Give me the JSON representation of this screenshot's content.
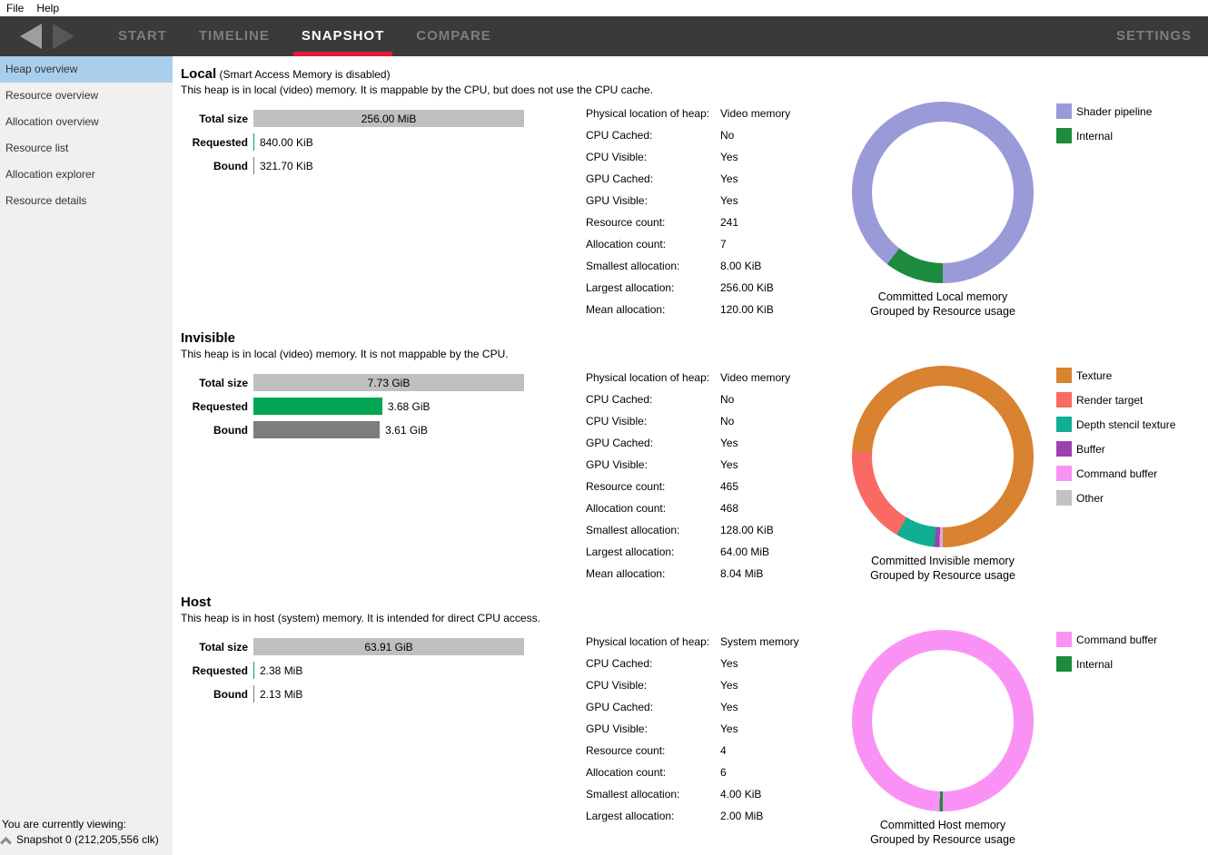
{
  "menu": {
    "items": [
      {
        "label": "File"
      },
      {
        "label": "Help"
      }
    ]
  },
  "nav": {
    "tabs": [
      {
        "label": "START",
        "active": false
      },
      {
        "label": "TIMELINE",
        "active": false
      },
      {
        "label": "SNAPSHOT",
        "active": true
      },
      {
        "label": "COMPARE",
        "active": false
      }
    ],
    "settings_label": "SETTINGS"
  },
  "sidebar": {
    "items": [
      {
        "label": "Heap overview",
        "selected": true
      },
      {
        "label": "Resource overview",
        "selected": false
      },
      {
        "label": "Allocation overview",
        "selected": false
      },
      {
        "label": "Resource list",
        "selected": false
      },
      {
        "label": "Allocation explorer",
        "selected": false
      },
      {
        "label": "Resource details",
        "selected": false
      }
    ],
    "status": {
      "line1": "You are currently viewing:",
      "snapshot": "Snapshot 0 (212,205,556 clk)"
    }
  },
  "heaps": [
    {
      "title": "Local",
      "title_suffix": " (Smart Access Memory is disabled)",
      "description": "This heap is in local (video) memory. It is mappable by the CPU, but does not use the CPU cache.",
      "bars": [
        {
          "label": "Total size",
          "value": "256.00 MiB",
          "pct": 100,
          "color": "#bfbfbf",
          "inside": true
        },
        {
          "label": "Requested",
          "value": "840.00 KiB",
          "pct": 0.32,
          "color": "#00a651",
          "inside": false
        },
        {
          "label": "Bound",
          "value": "321.70 KiB",
          "pct": 0.12,
          "color": "#7d7d7d",
          "inside": false
        }
      ],
      "stats": [
        {
          "label": "Physical location of heap:",
          "value": "Video memory"
        },
        {
          "label": "CPU Cached:",
          "value": "No"
        },
        {
          "label": "CPU Visible:",
          "value": "Yes"
        },
        {
          "label": "GPU Cached:",
          "value": "Yes"
        },
        {
          "label": "GPU Visible:",
          "value": "Yes"
        },
        {
          "label": "Resource count:",
          "value": "241"
        },
        {
          "label": "Allocation count:",
          "value": "7"
        },
        {
          "label": "Smallest allocation:",
          "value": "8.00 KiB"
        },
        {
          "label": "Largest allocation:",
          "value": "256.00 KiB"
        },
        {
          "label": "Mean allocation:",
          "value": "120.00 KiB"
        }
      ],
      "donut": {
        "type": "donut",
        "segments": [
          {
            "label": "Shader pipeline",
            "color": "#9b9ad9",
            "pct": 89.5
          },
          {
            "label": "Internal",
            "color": "#1c8b3d",
            "pct": 10.5
          }
        ],
        "caption1": "Committed Local memory",
        "caption2": "Grouped by Resource usage"
      }
    },
    {
      "title": "Invisible",
      "title_suffix": "",
      "description": "This heap is in local (video) memory. It is not mappable by the CPU.",
      "bars": [
        {
          "label": "Total size",
          "value": "7.73 GiB",
          "pct": 100,
          "color": "#bfbfbf",
          "inside": true
        },
        {
          "label": "Requested",
          "value": "3.68 GiB",
          "pct": 47.6,
          "color": "#00a651",
          "inside": false
        },
        {
          "label": "Bound",
          "value": "3.61 GiB",
          "pct": 46.7,
          "color": "#7d7d7d",
          "inside": false
        }
      ],
      "stats": [
        {
          "label": "Physical location of heap:",
          "value": "Video memory"
        },
        {
          "label": "CPU Cached:",
          "value": "No"
        },
        {
          "label": "CPU Visible:",
          "value": "No"
        },
        {
          "label": "GPU Cached:",
          "value": "Yes"
        },
        {
          "label": "GPU Visible:",
          "value": "Yes"
        },
        {
          "label": "Resource count:",
          "value": "465"
        },
        {
          "label": "Allocation count:",
          "value": "468"
        },
        {
          "label": "Smallest allocation:",
          "value": "128.00 KiB"
        },
        {
          "label": "Largest allocation:",
          "value": "64.00 MiB"
        },
        {
          "label": "Mean allocation:",
          "value": "8.04 MiB"
        }
      ],
      "donut": {
        "type": "donut",
        "segments": [
          {
            "label": "Texture",
            "color": "#d9822f",
            "pct": 74.0
          },
          {
            "label": "Render target",
            "color": "#f96b62",
            "pct": 17.5
          },
          {
            "label": "Depth stencil texture",
            "color": "#10ae92",
            "pct": 7.0
          },
          {
            "label": "Buffer",
            "color": "#9c42b0",
            "pct": 0.9
          },
          {
            "label": "Command buffer",
            "color": "#fa92f5",
            "pct": 0.3
          },
          {
            "label": "Other",
            "color": "#c2c2c2",
            "pct": 0.3
          }
        ],
        "caption1": "Committed Invisible memory",
        "caption2": "Grouped by Resource usage"
      }
    },
    {
      "title": "Host",
      "title_suffix": "",
      "description": "This heap is in host (system) memory. It is intended for direct CPU access.",
      "bars": [
        {
          "label": "Total size",
          "value": "63.91 GiB",
          "pct": 100,
          "color": "#bfbfbf",
          "inside": true
        },
        {
          "label": "Requested",
          "value": "2.38 MiB",
          "pct": 0.01,
          "color": "#00a651",
          "inside": false
        },
        {
          "label": "Bound",
          "value": "2.13 MiB",
          "pct": 0.01,
          "color": "#7d7d7d",
          "inside": false
        }
      ],
      "stats": [
        {
          "label": "Physical location of heap:",
          "value": "System memory"
        },
        {
          "label": "CPU Cached:",
          "value": "Yes"
        },
        {
          "label": "CPU Visible:",
          "value": "Yes"
        },
        {
          "label": "GPU Cached:",
          "value": "Yes"
        },
        {
          "label": "GPU Visible:",
          "value": "Yes"
        },
        {
          "label": "Resource count:",
          "value": "4"
        },
        {
          "label": "Allocation count:",
          "value": "6"
        },
        {
          "label": "Smallest allocation:",
          "value": "4.00 KiB"
        },
        {
          "label": "Largest allocation:",
          "value": "2.00 MiB"
        }
      ],
      "donut": {
        "type": "donut",
        "segments": [
          {
            "label": "Command buffer",
            "color": "#fa92f5",
            "pct": 99.4
          },
          {
            "label": "Internal",
            "color": "#1c8b3d",
            "pct": 0.6
          }
        ],
        "caption1": "Committed Host memory",
        "caption2": "Grouped by Resource usage"
      }
    }
  ]
}
